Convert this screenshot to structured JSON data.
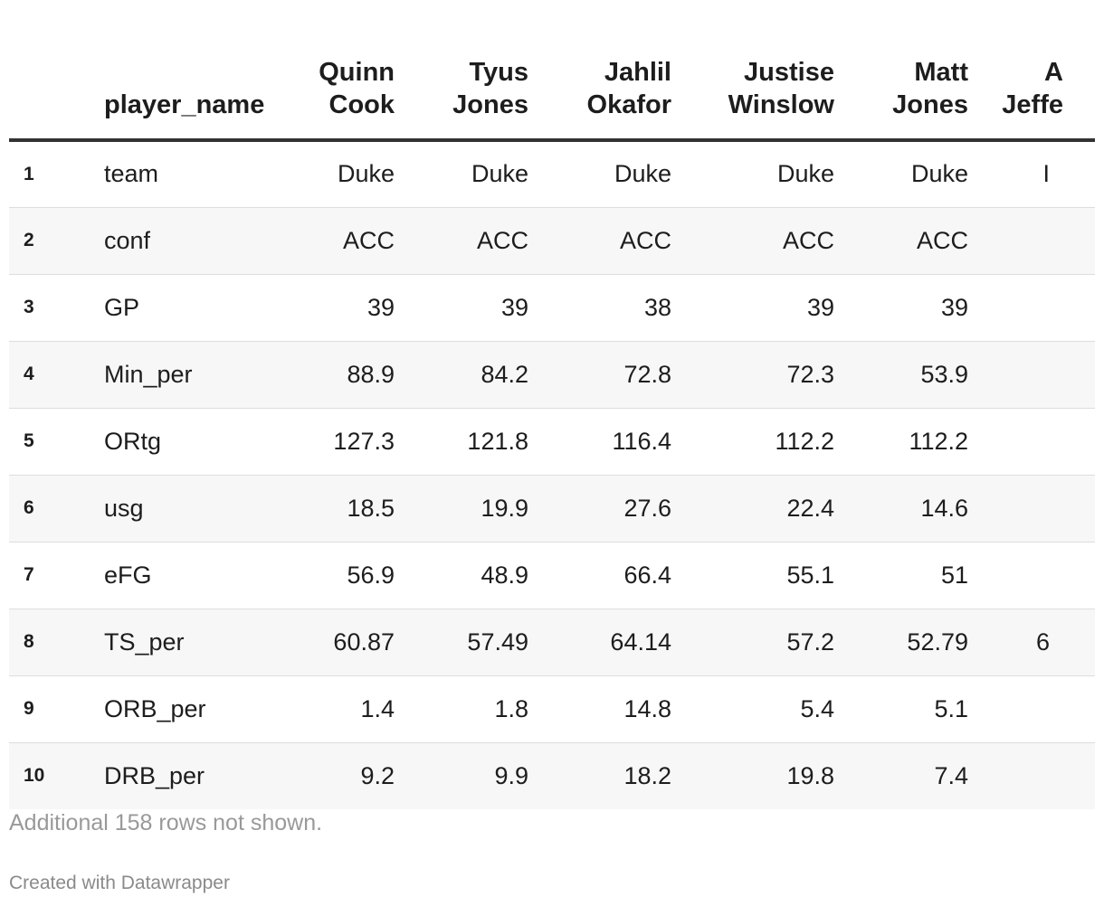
{
  "chart_data": {
    "type": "table",
    "columns": [
      {
        "key": "idx",
        "label": ""
      },
      {
        "key": "name",
        "label": "player_name"
      },
      {
        "key": "p1",
        "label": "Quinn\nCook"
      },
      {
        "key": "p2",
        "label": "Tyus\nJones"
      },
      {
        "key": "p3",
        "label": "Jahlil\nOkafor"
      },
      {
        "key": "p4",
        "label": "Justise\nWinslow"
      },
      {
        "key": "p5",
        "label": "Matt\nJones"
      },
      {
        "key": "p6",
        "label": "A\nJeffe"
      }
    ],
    "rows": [
      {
        "idx": "1",
        "name": "team",
        "p1": "Duke",
        "p2": "Duke",
        "p3": "Duke",
        "p4": "Duke",
        "p5": "Duke",
        "p6": "I"
      },
      {
        "idx": "2",
        "name": "conf",
        "p1": "ACC",
        "p2": "ACC",
        "p3": "ACC",
        "p4": "ACC",
        "p5": "ACC",
        "p6": ""
      },
      {
        "idx": "3",
        "name": "GP",
        "p1": "39",
        "p2": "39",
        "p3": "38",
        "p4": "39",
        "p5": "39",
        "p6": ""
      },
      {
        "idx": "4",
        "name": "Min_per",
        "p1": "88.9",
        "p2": "84.2",
        "p3": "72.8",
        "p4": "72.3",
        "p5": "53.9",
        "p6": ""
      },
      {
        "idx": "5",
        "name": "ORtg",
        "p1": "127.3",
        "p2": "121.8",
        "p3": "116.4",
        "p4": "112.2",
        "p5": "112.2",
        "p6": ""
      },
      {
        "idx": "6",
        "name": "usg",
        "p1": "18.5",
        "p2": "19.9",
        "p3": "27.6",
        "p4": "22.4",
        "p5": "14.6",
        "p6": ""
      },
      {
        "idx": "7",
        "name": "eFG",
        "p1": "56.9",
        "p2": "48.9",
        "p3": "66.4",
        "p4": "55.1",
        "p5": "51",
        "p6": ""
      },
      {
        "idx": "8",
        "name": "TS_per",
        "p1": "60.87",
        "p2": "57.49",
        "p3": "64.14",
        "p4": "57.2",
        "p5": "52.79",
        "p6": "6"
      },
      {
        "idx": "9",
        "name": "ORB_per",
        "p1": "1.4",
        "p2": "1.8",
        "p3": "14.8",
        "p4": "5.4",
        "p5": "5.1",
        "p6": ""
      },
      {
        "idx": "10",
        "name": "DRB_per",
        "p1": "9.2",
        "p2": "9.9",
        "p3": "18.2",
        "p4": "19.8",
        "p5": "7.4",
        "p6": ""
      }
    ],
    "notes": "Additional 158 rows not shown.",
    "credit": "Created with Datawrapper"
  }
}
